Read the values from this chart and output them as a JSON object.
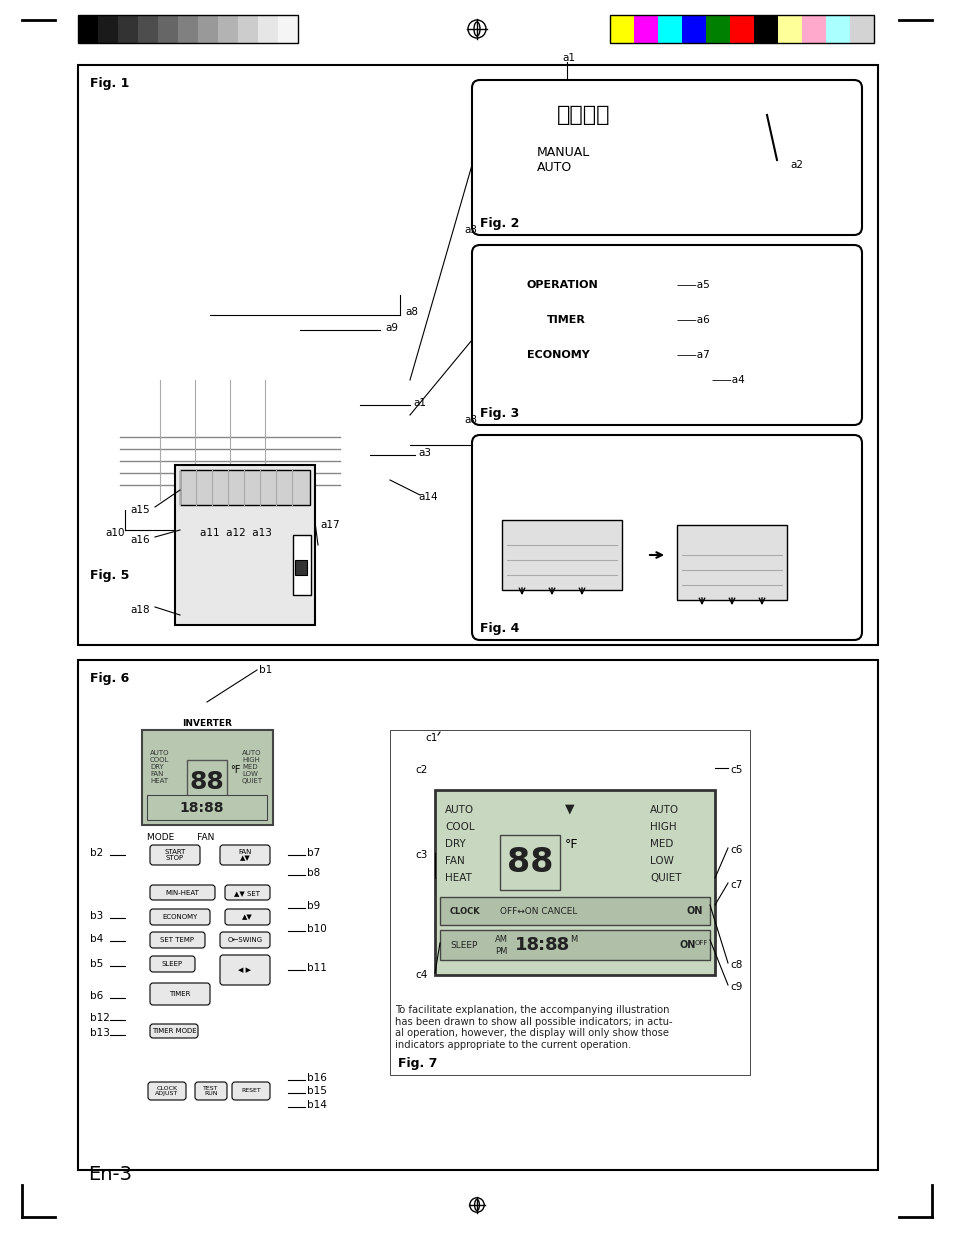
{
  "page_bg": "#ffffff",
  "border_color": "#000000",
  "line_color": "#000000",
  "text_color": "#000000",
  "gray_color": "#888888",
  "light_gray": "#cccccc",
  "page_number": "En-3",
  "fig1_label": "Fig. 1",
  "fig2_label": "Fig. 2",
  "fig3_label": "Fig. 3",
  "fig4_label": "Fig. 4",
  "fig5_label": "Fig. 5",
  "fig6_label": "Fig. 6",
  "fig7_label": "Fig. 7",
  "top_grayscale_colors": [
    "#000000",
    "#1a1a1a",
    "#333333",
    "#4d4d4d",
    "#666666",
    "#808080",
    "#999999",
    "#b3b3b3",
    "#cccccc",
    "#e6e6e6",
    "#f5f5f5"
  ],
  "top_color_swatches": [
    "#ffff00",
    "#ff00ff",
    "#00ffff",
    "#0000ff",
    "#008000",
    "#ff0000",
    "#000000",
    "#ffff99",
    "#ffaacc",
    "#aaffff",
    "#d3d3d3"
  ],
  "crosshair_color": "#000000",
  "manual_auto_text": "MANUAL\nAUTO",
  "kanji_text": "強制自動",
  "operation_text": "OPERATION",
  "timer_text": "TIMER",
  "economy_text": "ECONOMY",
  "labels_a": [
    "a1",
    "a2",
    "a3",
    "a4",
    "a5",
    "a6",
    "a7",
    "a8",
    "a9",
    "a10",
    "a11",
    "a12",
    "a13",
    "a14",
    "a15",
    "a16",
    "a17",
    "a18"
  ],
  "labels_b": [
    "b1",
    "b2",
    "b3",
    "b4",
    "b5",
    "b6",
    "b7",
    "b8",
    "b9",
    "b10",
    "b11",
    "b12",
    "b13",
    "b14",
    "b15",
    "b16"
  ],
  "labels_c": [
    "c1",
    "c2",
    "c3",
    "c4",
    "c5",
    "c6",
    "c7",
    "c8",
    "c9"
  ],
  "remote_mode_fan": "MODE        FAN",
  "remote_start_stop": "START\nSTOP",
  "remote_inverter": "INVERTER",
  "remote_economy": "ECONOMY",
  "remote_set_temp": "SET\nTEMP",
  "remote_sleep": "SLEEP",
  "remote_timer": "TIMER",
  "remote_clock": "CLOCK\nADJUST",
  "remote_test": "TEST\nRUN",
  "remote_reset": "RESET",
  "lcd_auto": "AUTO\nCOOL\nDRY\nFAN\nHEAT",
  "lcd_auto2": "AUTO\nHIGH\nMED\nLOW\nQUIET",
  "lcd_sleep": "SLEEP",
  "lcd_ampm": "AM\nPM",
  "lcd_clock": "CLOCK",
  "lcd_off_on": "OFF↔ON CANCEL",
  "lcd_on": "ON",
  "fig7_note": "To facilitate explanation, the accompanying illustration\nhas been drawn to show all possible indicators; in actu-\nal operation, however, the display will only show those\nindicators appropriate to the current operation.",
  "upper_box_bg": "#f8f8f8",
  "lower_box_bg": "#f8f8f8"
}
